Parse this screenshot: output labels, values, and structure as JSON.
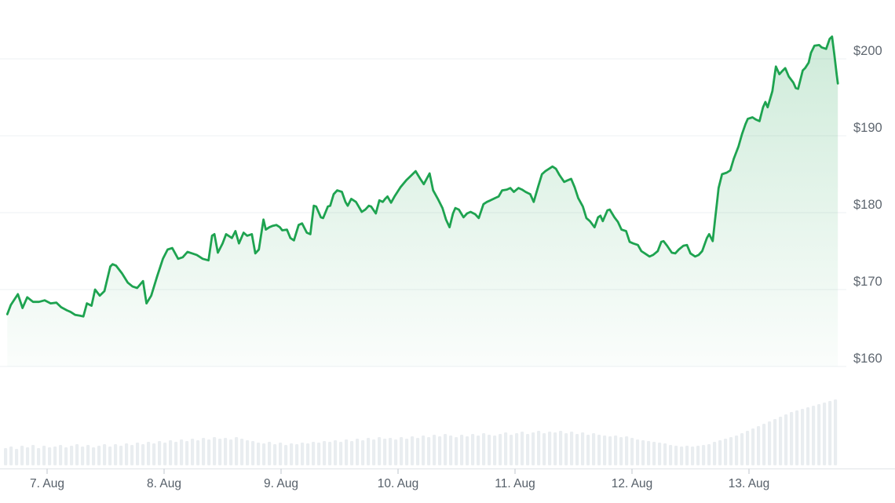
{
  "chart": {
    "background": "#ffffff",
    "line_color": "#1ea350",
    "fill_top_color": "rgba(34,164,84,0.22)",
    "fill_bottom_color": "rgba(34,164,84,0.02)",
    "gridline_color": "#f1f3f5",
    "axis_line_color": "#e4e8eb",
    "tick_color": "#c9ced4",
    "y_label_color": "#5f6770",
    "x_label_color": "#565f69",
    "volume_bar_color": "#e9edf0"
  },
  "chart_data": {
    "type": "line",
    "title": "",
    "xlabel": "",
    "ylabel": "",
    "grid": "horizontal",
    "legend": "none",
    "y_axis_side": "right",
    "currency_prefix": "$",
    "y_ticks": [
      200,
      190,
      180,
      170,
      160
    ],
    "y_tick_labels": [
      "$200",
      "$190",
      "$180",
      "$170",
      "$160"
    ],
    "ylim": [
      158,
      204
    ],
    "x_tick_days": [
      7,
      8,
      9,
      10,
      11,
      12,
      13
    ],
    "x_tick_labels": [
      "7. Aug",
      "8. Aug",
      "9. Aug",
      "10. Aug",
      "11. Aug",
      "12. Aug",
      "13. Aug"
    ],
    "xlim": [
      6.62,
      13.8
    ],
    "series": [
      {
        "name": "price",
        "unit": "USD",
        "points": [
          [
            6.66,
            166.8
          ],
          [
            6.69,
            168.0
          ],
          [
            6.75,
            169.4
          ],
          [
            6.79,
            167.6
          ],
          [
            6.83,
            169.0
          ],
          [
            6.88,
            168.4
          ],
          [
            6.93,
            168.4
          ],
          [
            6.98,
            168.6
          ],
          [
            7.03,
            168.2
          ],
          [
            7.08,
            168.3
          ],
          [
            7.12,
            167.7
          ],
          [
            7.17,
            167.3
          ],
          [
            7.2,
            167.1
          ],
          [
            7.24,
            166.7
          ],
          [
            7.28,
            166.6
          ],
          [
            7.31,
            166.5
          ],
          [
            7.34,
            168.2
          ],
          [
            7.38,
            167.9
          ],
          [
            7.41,
            170.0
          ],
          [
            7.45,
            169.2
          ],
          [
            7.49,
            169.8
          ],
          [
            7.54,
            173.0
          ],
          [
            7.56,
            173.3
          ],
          [
            7.59,
            173.1
          ],
          [
            7.64,
            172.1
          ],
          [
            7.69,
            170.9
          ],
          [
            7.73,
            170.4
          ],
          [
            7.77,
            170.2
          ],
          [
            7.82,
            171.1
          ],
          [
            7.85,
            168.2
          ],
          [
            7.89,
            169.2
          ],
          [
            7.94,
            171.7
          ],
          [
            7.99,
            174.0
          ],
          [
            8.03,
            175.2
          ],
          [
            8.07,
            175.4
          ],
          [
            8.12,
            174.0
          ],
          [
            8.16,
            174.2
          ],
          [
            8.2,
            174.9
          ],
          [
            8.24,
            174.7
          ],
          [
            8.28,
            174.5
          ],
          [
            8.33,
            174.0
          ],
          [
            8.38,
            173.8
          ],
          [
            8.41,
            177.0
          ],
          [
            8.43,
            177.2
          ],
          [
            8.46,
            174.8
          ],
          [
            8.5,
            176.0
          ],
          [
            8.53,
            177.2
          ],
          [
            8.58,
            176.7
          ],
          [
            8.61,
            177.6
          ],
          [
            8.64,
            176.0
          ],
          [
            8.68,
            177.4
          ],
          [
            8.71,
            177.0
          ],
          [
            8.75,
            177.2
          ],
          [
            8.78,
            174.7
          ],
          [
            8.81,
            175.2
          ],
          [
            8.85,
            179.1
          ],
          [
            8.87,
            177.8
          ],
          [
            8.9,
            178.1
          ],
          [
            8.93,
            178.3
          ],
          [
            8.96,
            178.4
          ],
          [
            8.99,
            178.1
          ],
          [
            9.01,
            177.7
          ],
          [
            9.05,
            177.8
          ],
          [
            9.08,
            176.7
          ],
          [
            9.11,
            176.4
          ],
          [
            9.15,
            178.4
          ],
          [
            9.18,
            178.6
          ],
          [
            9.22,
            177.4
          ],
          [
            9.25,
            177.2
          ],
          [
            9.28,
            180.9
          ],
          [
            9.3,
            180.8
          ],
          [
            9.34,
            179.4
          ],
          [
            9.36,
            179.3
          ],
          [
            9.4,
            180.8
          ],
          [
            9.42,
            180.9
          ],
          [
            9.45,
            182.4
          ],
          [
            9.48,
            182.9
          ],
          [
            9.52,
            182.7
          ],
          [
            9.55,
            181.4
          ],
          [
            9.57,
            180.9
          ],
          [
            9.6,
            181.8
          ],
          [
            9.64,
            181.4
          ],
          [
            9.66,
            180.9
          ],
          [
            9.69,
            180.1
          ],
          [
            9.72,
            180.4
          ],
          [
            9.75,
            180.9
          ],
          [
            9.77,
            180.8
          ],
          [
            9.81,
            179.9
          ],
          [
            9.84,
            181.6
          ],
          [
            9.87,
            181.4
          ],
          [
            9.89,
            181.8
          ],
          [
            9.91,
            182.1
          ],
          [
            9.94,
            181.3
          ],
          [
            9.97,
            182.1
          ],
          [
            10.02,
            183.3
          ],
          [
            10.07,
            184.2
          ],
          [
            10.11,
            184.8
          ],
          [
            10.15,
            185.4
          ],
          [
            10.19,
            184.4
          ],
          [
            10.22,
            183.7
          ],
          [
            10.27,
            185.1
          ],
          [
            10.3,
            182.9
          ],
          [
            10.34,
            181.8
          ],
          [
            10.38,
            180.6
          ],
          [
            10.41,
            179.1
          ],
          [
            10.44,
            178.1
          ],
          [
            10.47,
            179.9
          ],
          [
            10.49,
            180.6
          ],
          [
            10.52,
            180.4
          ],
          [
            10.56,
            179.4
          ],
          [
            10.59,
            179.9
          ],
          [
            10.62,
            180.1
          ],
          [
            10.66,
            179.8
          ],
          [
            10.69,
            179.3
          ],
          [
            10.73,
            181.1
          ],
          [
            10.76,
            181.4
          ],
          [
            10.79,
            181.6
          ],
          [
            10.83,
            181.9
          ],
          [
            10.86,
            182.1
          ],
          [
            10.89,
            182.9
          ],
          [
            10.93,
            183.0
          ],
          [
            10.96,
            183.2
          ],
          [
            10.99,
            182.7
          ],
          [
            11.03,
            183.2
          ],
          [
            11.06,
            183.0
          ],
          [
            11.09,
            182.7
          ],
          [
            11.13,
            182.4
          ],
          [
            11.16,
            181.4
          ],
          [
            11.2,
            183.5
          ],
          [
            11.23,
            185.0
          ],
          [
            11.26,
            185.4
          ],
          [
            11.3,
            185.8
          ],
          [
            11.32,
            186.0
          ],
          [
            11.35,
            185.7
          ],
          [
            11.38,
            184.9
          ],
          [
            11.42,
            184.0
          ],
          [
            11.45,
            184.2
          ],
          [
            11.48,
            184.4
          ],
          [
            11.51,
            183.3
          ],
          [
            11.54,
            181.9
          ],
          [
            11.58,
            180.8
          ],
          [
            11.61,
            179.3
          ],
          [
            11.64,
            178.9
          ],
          [
            11.68,
            178.1
          ],
          [
            11.71,
            179.4
          ],
          [
            11.73,
            179.6
          ],
          [
            11.75,
            178.9
          ],
          [
            11.79,
            180.3
          ],
          [
            11.81,
            180.4
          ],
          [
            11.85,
            179.4
          ],
          [
            11.88,
            178.8
          ],
          [
            11.91,
            177.8
          ],
          [
            11.95,
            177.6
          ],
          [
            11.98,
            176.2
          ],
          [
            12.01,
            176.0
          ],
          [
            12.05,
            175.8
          ],
          [
            12.08,
            175.0
          ],
          [
            12.11,
            174.7
          ],
          [
            12.15,
            174.3
          ],
          [
            12.18,
            174.5
          ],
          [
            12.22,
            175.0
          ],
          [
            12.25,
            176.2
          ],
          [
            12.27,
            176.3
          ],
          [
            12.3,
            175.7
          ],
          [
            12.34,
            174.8
          ],
          [
            12.37,
            174.7
          ],
          [
            12.4,
            175.2
          ],
          [
            12.44,
            175.7
          ],
          [
            12.47,
            175.8
          ],
          [
            12.5,
            174.7
          ],
          [
            12.54,
            174.3
          ],
          [
            12.57,
            174.5
          ],
          [
            12.6,
            175.0
          ],
          [
            12.64,
            176.7
          ],
          [
            12.66,
            177.2
          ],
          [
            12.69,
            176.3
          ],
          [
            12.71,
            179.1
          ],
          [
            12.73,
            181.8
          ],
          [
            12.74,
            183.2
          ],
          [
            12.77,
            185.0
          ],
          [
            12.81,
            185.2
          ],
          [
            12.84,
            185.5
          ],
          [
            12.87,
            187.0
          ],
          [
            12.91,
            188.6
          ],
          [
            12.94,
            190.2
          ],
          [
            12.97,
            191.5
          ],
          [
            12.99,
            192.2
          ],
          [
            13.03,
            192.4
          ],
          [
            13.06,
            192.1
          ],
          [
            13.09,
            191.9
          ],
          [
            13.12,
            193.7
          ],
          [
            13.14,
            194.4
          ],
          [
            13.16,
            193.7
          ],
          [
            13.2,
            195.8
          ],
          [
            13.23,
            199.0
          ],
          [
            13.26,
            198.0
          ],
          [
            13.29,
            198.5
          ],
          [
            13.31,
            198.8
          ],
          [
            13.34,
            197.7
          ],
          [
            13.38,
            196.9
          ],
          [
            13.4,
            196.2
          ],
          [
            13.42,
            196.1
          ],
          [
            13.46,
            198.5
          ],
          [
            13.48,
            198.8
          ],
          [
            13.51,
            199.5
          ],
          [
            13.53,
            200.8
          ],
          [
            13.56,
            201.7
          ],
          [
            13.6,
            201.8
          ],
          [
            13.62,
            201.5
          ],
          [
            13.66,
            201.3
          ],
          [
            13.69,
            202.6
          ],
          [
            13.71,
            202.9
          ],
          [
            13.73,
            200.5
          ],
          [
            13.75,
            197.9
          ],
          [
            13.76,
            196.8
          ]
        ]
      }
    ],
    "volume": {
      "note": "unlabeled relative volume bars along bottom",
      "relative_heights": [
        22,
        24,
        21,
        25,
        23,
        26,
        22,
        25,
        23,
        24,
        26,
        23,
        25,
        27,
        24,
        26,
        23,
        25,
        27,
        24,
        27,
        25,
        28,
        26,
        29,
        27,
        30,
        28,
        31,
        29,
        32,
        30,
        33,
        31,
        34,
        32,
        35,
        33,
        36,
        34,
        35,
        33,
        36,
        34,
        32,
        31,
        29,
        28,
        30,
        27,
        29,
        26,
        28,
        27,
        29,
        28,
        30,
        29,
        31,
        30,
        32,
        30,
        33,
        31,
        34,
        32,
        35,
        33,
        36,
        34,
        35,
        33,
        36,
        34,
        37,
        35,
        38,
        36,
        39,
        37,
        40,
        38,
        36,
        39,
        37,
        40,
        38,
        41,
        39,
        38,
        40,
        42,
        39,
        41,
        43,
        40,
        42,
        44,
        41,
        43,
        42,
        44,
        41,
        43,
        40,
        42,
        39,
        41,
        39,
        38,
        37,
        38,
        36,
        37,
        35,
        33,
        32,
        31,
        30,
        29,
        28,
        26,
        25,
        24,
        25,
        24,
        25,
        26,
        27,
        30,
        32,
        34,
        36,
        38,
        41,
        44,
        47,
        50,
        53,
        56,
        59,
        62,
        65,
        68,
        70,
        72,
        74,
        76,
        78,
        80,
        82,
        84
      ]
    }
  }
}
